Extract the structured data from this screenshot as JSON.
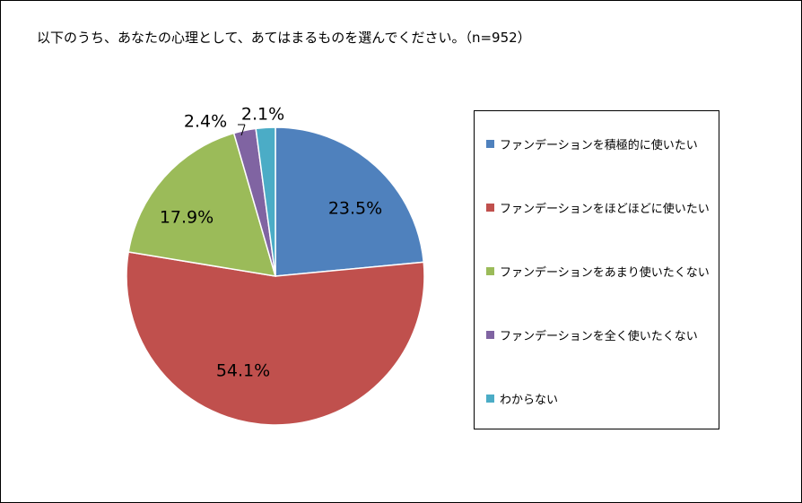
{
  "title": "以下のうち、あなたの心理として、あてはまるものを選んでください。（n=952）",
  "chart_data": {
    "type": "pie",
    "title": "以下のうち、あなたの心理として、あてはまるものを選んでください。（n=952）",
    "categories": [
      "ファンデーションを積極的に使いたい",
      "ファンデーションをほどほどに使いたい",
      "ファンデーションをあまり使いたくない",
      "ファンデーションを全く使いたくない",
      "わからない"
    ],
    "values": [
      23.5,
      54.1,
      17.9,
      2.4,
      2.1
    ],
    "labels": [
      "23.5%",
      "54.1%",
      "17.9%",
      "2.4%",
      "2.1%"
    ],
    "colors": [
      "#4f81bd",
      "#c0504d",
      "#9bbb59",
      "#8064a2",
      "#4bacc6"
    ],
    "legend_position": "right"
  }
}
